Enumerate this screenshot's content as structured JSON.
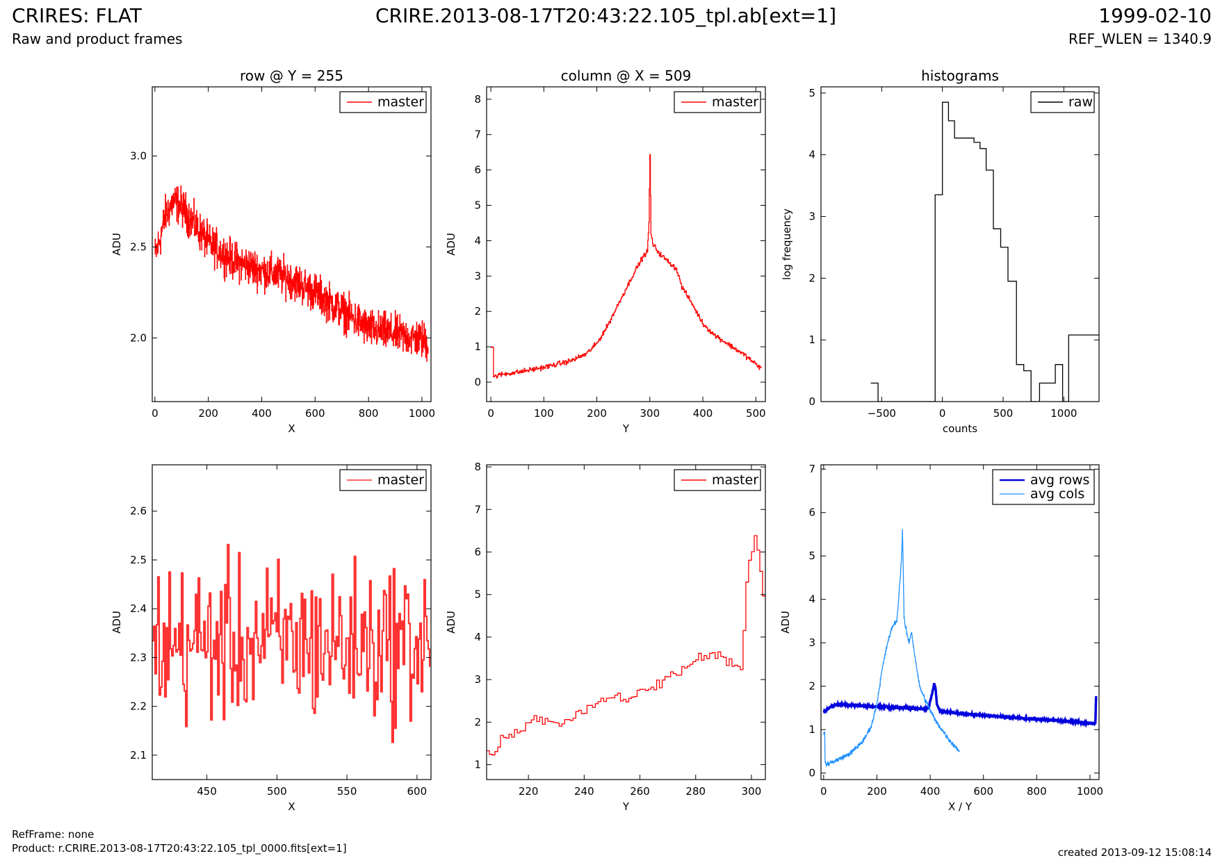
{
  "header": {
    "title_left": "CRIRES: FLAT",
    "subtitle_left": "Raw and product frames",
    "title_center": "CRIRE.2013-08-17T20:43:22.105_tpl.ab[ext=1]",
    "title_right": "1999-02-10",
    "subtitle_right": "REF_WLEN = 1340.9"
  },
  "footer": {
    "ref_frame": "RefFrame: none",
    "product": "Product: r.CRIRE.2013-08-17T20:43:22.105_tpl_0000.fits[ext=1]",
    "created": "created 2013-09-12 15:08:14"
  },
  "colors": {
    "master": "#ff0000",
    "master_zoom": "#ff3333",
    "raw": "#000000",
    "avg_rows": "#0000dd",
    "avg_cols": "#1e90ff"
  },
  "chart_data": [
    {
      "id": "row",
      "type": "line",
      "title": "row @ Y = 255",
      "xlabel": "X",
      "ylabel": "ADU",
      "xlim": [
        -10,
        1034
      ],
      "ylim": [
        1.65,
        3.38
      ],
      "xticks": [
        0,
        200,
        400,
        600,
        800,
        1000
      ],
      "yticks": [
        2.0,
        2.5,
        3.0
      ],
      "ytick_labels": [
        "2.0",
        "2.5",
        "3.0"
      ],
      "legend": "top-right",
      "series": [
        {
          "name": "master",
          "color": "#ff0000",
          "step": true,
          "trend_x": [
            0,
            20,
            40,
            70,
            100,
            150,
            200,
            300,
            400,
            500,
            600,
            700,
            800,
            900,
            1000,
            1023
          ],
          "trend_y": [
            2.45,
            2.55,
            2.68,
            2.75,
            2.72,
            2.62,
            2.52,
            2.42,
            2.37,
            2.33,
            2.25,
            2.15,
            2.05,
            2.02,
            1.99,
            1.97
          ],
          "noise": 0.09,
          "points": 1024
        }
      ]
    },
    {
      "id": "column",
      "type": "line",
      "title": "column @ X = 509",
      "xlabel": "Y",
      "ylabel": "ADU",
      "xlim": [
        -8,
        518
      ],
      "ylim": [
        -0.55,
        8.35
      ],
      "xticks": [
        0,
        100,
        200,
        300,
        400,
        500
      ],
      "yticks": [
        0,
        1,
        2,
        3,
        4,
        5,
        6,
        7,
        8
      ],
      "legend": "top-right",
      "series": [
        {
          "name": "master",
          "color": "#ff0000",
          "step": true,
          "x": [
            0,
            4,
            5,
            20,
            50,
            100,
            150,
            180,
            200,
            220,
            250,
            270,
            285,
            295,
            298,
            300,
            302,
            305,
            320,
            350,
            360,
            380,
            400,
            420,
            450,
            480,
            500,
            511
          ],
          "y": [
            1.0,
            1.0,
            0.15,
            0.22,
            0.28,
            0.42,
            0.6,
            0.8,
            1.1,
            1.6,
            2.5,
            3.1,
            3.5,
            3.7,
            4.5,
            6.4,
            4.2,
            3.9,
            3.6,
            3.2,
            2.7,
            2.2,
            1.65,
            1.35,
            1.05,
            0.75,
            0.5,
            0.38
          ],
          "noise": 0.06
        }
      ]
    },
    {
      "id": "histograms",
      "type": "histogram",
      "title": "histograms",
      "xlabel": "counts",
      "ylabel": "log frequency",
      "xlim": [
        -1000,
        1290
      ],
      "ylim": [
        0,
        5.1
      ],
      "xticks": [
        -500,
        0,
        500,
        1000
      ],
      "xtick_labels": [
        "−500",
        "0",
        "500",
        "1000"
      ],
      "yticks": [
        0,
        1,
        2,
        3,
        4,
        5
      ],
      "legend": "top-right",
      "series": [
        {
          "name": "raw",
          "color": "#000000",
          "x": [
            -590,
            -530,
            -530,
            -60,
            -60,
            0,
            0,
            50,
            50,
            100,
            100,
            260,
            260,
            310,
            310,
            360,
            360,
            420,
            420,
            480,
            480,
            540,
            540,
            610,
            610,
            670,
            670,
            730,
            730,
            800,
            800,
            930,
            930,
            990,
            990,
            1040,
            1040,
            1220,
            1220,
            1290
          ],
          "y": [
            0.3,
            0.3,
            0,
            0,
            3.35,
            3.35,
            4.85,
            4.85,
            4.55,
            4.55,
            4.27,
            4.27,
            4.2,
            4.2,
            4.1,
            4.1,
            3.75,
            3.75,
            2.8,
            2.8,
            2.5,
            2.5,
            1.95,
            1.95,
            0.6,
            0.6,
            0.5,
            0.5,
            0,
            0,
            0.3,
            0.3,
            0.6,
            0.6,
            0,
            0,
            1.08,
            1.08,
            1.08,
            1.08
          ]
        }
      ]
    },
    {
      "id": "row-zoom",
      "type": "line",
      "title": "",
      "xlabel": "X",
      "ylabel": "ADU",
      "xlim": [
        411,
        610
      ],
      "ylim": [
        2.05,
        2.695
      ],
      "xticks": [
        450,
        500,
        550,
        600
      ],
      "yticks": [
        2.1,
        2.2,
        2.3,
        2.4,
        2.5,
        2.6
      ],
      "legend": "top-right",
      "series": [
        {
          "name": "master",
          "color": "#ff3333",
          "step": true,
          "mean": 2.33,
          "noise": 0.14,
          "points": 200
        }
      ]
    },
    {
      "id": "column-zoom",
      "type": "line",
      "title": "",
      "xlabel": "Y",
      "ylabel": "ADU",
      "xlim": [
        205,
        305
      ],
      "ylim": [
        0.65,
        8.05
      ],
      "xticks": [
        220,
        240,
        260,
        280,
        300
      ],
      "yticks": [
        1,
        2,
        3,
        4,
        5,
        6,
        7,
        8
      ],
      "legend": "top-right",
      "series": [
        {
          "name": "master",
          "color": "#ff0000",
          "step": true,
          "x": [
            205,
            206,
            207,
            210,
            215,
            218,
            220,
            222,
            225,
            230,
            235,
            240,
            245,
            248,
            252,
            256,
            260,
            265,
            270,
            275,
            280,
            284,
            288,
            292,
            296,
            297,
            298,
            299,
            300,
            301,
            302,
            303,
            304,
            305
          ],
          "y": [
            1.3,
            1.2,
            1.25,
            1.6,
            1.75,
            1.8,
            1.95,
            2.1,
            2.0,
            1.95,
            2.15,
            2.3,
            2.45,
            2.65,
            2.55,
            2.5,
            2.75,
            2.8,
            3.1,
            3.2,
            3.5,
            3.55,
            3.6,
            3.4,
            3.3,
            4.2,
            5.3,
            5.8,
            6.0,
            6.4,
            6.0,
            5.6,
            5.0,
            4.9
          ],
          "noise": 0.1
        }
      ]
    },
    {
      "id": "averages",
      "type": "line",
      "title": "",
      "xlabel": "X / Y",
      "ylabel": "ADU",
      "xlim": [
        -10,
        1034
      ],
      "ylim": [
        -0.15,
        7.1
      ],
      "xticks": [
        0,
        200,
        400,
        600,
        800,
        1000
      ],
      "yticks": [
        0,
        1,
        2,
        3,
        4,
        5,
        6,
        7
      ],
      "legend": "top-right",
      "series": [
        {
          "name": "avg rows",
          "color": "#0000dd",
          "step": false,
          "x": [
            0,
            10,
            25,
            50,
            100,
            200,
            300,
            380,
            395,
            400,
            410,
            415,
            420,
            425,
            435,
            450,
            500,
            600,
            700,
            800,
            900,
            1000,
            1020,
            1021,
            1022,
            1023
          ],
          "y": [
            1.4,
            1.45,
            1.52,
            1.58,
            1.56,
            1.53,
            1.5,
            1.48,
            1.52,
            1.65,
            1.9,
            2.08,
            1.95,
            1.6,
            1.45,
            1.42,
            1.38,
            1.33,
            1.28,
            1.24,
            1.2,
            1.15,
            1.14,
            1.3,
            1.6,
            1.78
          ],
          "noise": 0.015,
          "stroke_width": 3.5
        },
        {
          "name": "avg cols",
          "color": "#1e90ff",
          "step": false,
          "x": [
            0,
            4,
            6,
            20,
            50,
            100,
            150,
            180,
            200,
            220,
            240,
            260,
            275,
            285,
            292,
            296,
            298,
            300,
            302,
            305,
            310,
            320,
            330,
            340,
            350,
            360,
            380,
            400,
            420,
            450,
            480,
            511
          ],
          "y": [
            0.95,
            0.9,
            0.2,
            0.22,
            0.3,
            0.45,
            0.75,
            1.1,
            1.6,
            2.4,
            3.0,
            3.4,
            3.5,
            4.3,
            4.9,
            5.6,
            5.0,
            4.2,
            3.6,
            3.4,
            3.3,
            3.0,
            3.25,
            2.8,
            2.4,
            2.0,
            1.7,
            1.45,
            1.2,
            0.95,
            0.7,
            0.5
          ],
          "noise": 0.05,
          "stroke_width": 1.3
        }
      ]
    }
  ]
}
